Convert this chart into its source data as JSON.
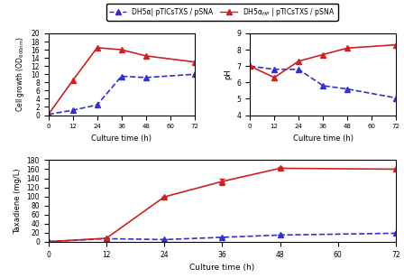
{
  "time": [
    0,
    12,
    24,
    36,
    48,
    72
  ],
  "cell_blue": [
    0.2,
    1.2,
    2.5,
    9.5,
    9.2,
    10.0
  ],
  "cell_red": [
    0.2,
    8.5,
    16.5,
    16.0,
    14.5,
    13.0
  ],
  "cell_ylim": [
    0,
    20
  ],
  "cell_yticks": [
    0,
    2,
    4,
    6,
    8,
    10,
    12,
    14,
    16,
    18,
    20
  ],
  "ph_blue": [
    7.0,
    6.8,
    6.8,
    5.8,
    5.6,
    5.05
  ],
  "ph_red": [
    7.0,
    6.3,
    7.3,
    7.7,
    8.1,
    8.3
  ],
  "ph_ylim": [
    4,
    9
  ],
  "ph_yticks": [
    4,
    5,
    6,
    7,
    8,
    9
  ],
  "tax_blue": [
    0.5,
    7.0,
    5.0,
    10.0,
    15.0,
    19.0
  ],
  "tax_red": [
    0.5,
    8.0,
    99.0,
    133.0,
    162.0,
    160.0
  ],
  "tax_red_err": [
    0,
    0,
    0,
    7,
    3,
    0
  ],
  "tax_blue_err": [
    0,
    0,
    0,
    0,
    0,
    0
  ],
  "tax_ylim": [
    0,
    180
  ],
  "tax_yticks": [
    0,
    20,
    40,
    60,
    80,
    100,
    120,
    140,
    160,
    180
  ],
  "xticks": [
    0,
    12,
    24,
    36,
    48,
    60,
    72
  ],
  "xlabel": "Culture time (h)",
  "blue_label": "DH5α| pTICsTXS / pSNA",
  "red_label": "DH5α$_{HP}$ | pTICsTXS / pSNA",
  "blue_color": "#3333cc",
  "red_color": "#cc2222",
  "cell_ylabel": "Cell growth (OD$_{600nm}$)",
  "ph_ylabel": "pH",
  "tax_ylabel": "Taxadiene (mg/L)"
}
